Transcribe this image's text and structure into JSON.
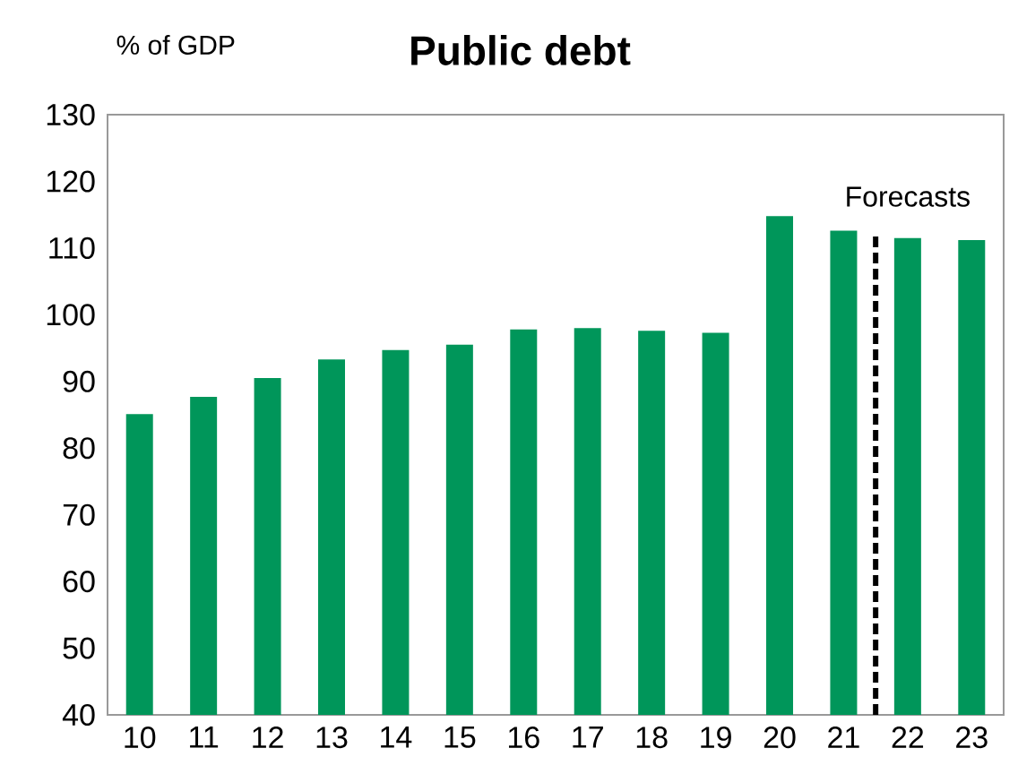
{
  "chart_data": {
    "type": "bar",
    "title": "Public debt",
    "ylabel": "% of GDP",
    "categories": [
      "10",
      "11",
      "12",
      "13",
      "14",
      "15",
      "16",
      "17",
      "18",
      "19",
      "20",
      "21",
      "22",
      "23"
    ],
    "values": [
      85.1,
      87.7,
      90.5,
      93.3,
      94.7,
      95.5,
      97.8,
      98.0,
      97.6,
      97.3,
      114.8,
      112.6,
      111.5,
      111.2
    ],
    "color": "#00965a",
    "ylim": [
      40,
      130
    ],
    "yticks": [
      40,
      50,
      60,
      70,
      80,
      90,
      100,
      110,
      120,
      130
    ],
    "annotations": [
      "Forecasts"
    ]
  }
}
